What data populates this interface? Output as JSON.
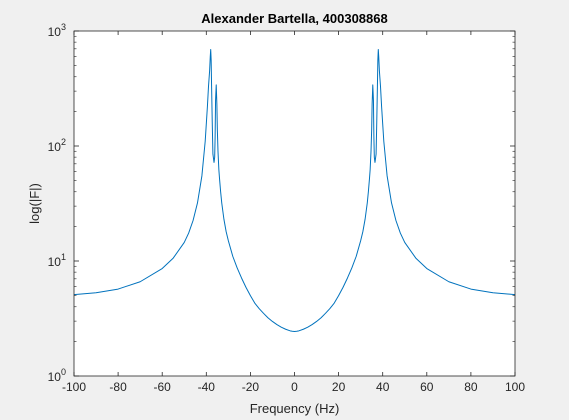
{
  "chart_data": {
    "type": "line",
    "title": "Alexander Bartella, 400308868",
    "xlabel": "Frequency (Hz)",
    "ylabel": "log(|F|)",
    "xlim": [
      -100,
      100
    ],
    "ylim": [
      1,
      1000
    ],
    "yscale": "log",
    "grid": false,
    "x_ticks": [
      -100,
      -80,
      -60,
      -40,
      -20,
      0,
      20,
      40,
      60,
      80,
      100
    ],
    "y_ticks": [
      {
        "value": 1,
        "base": "10",
        "exp": "0"
      },
      {
        "value": 10,
        "base": "10",
        "exp": "1"
      },
      {
        "value": 100,
        "base": "10",
        "exp": "2"
      },
      {
        "value": 1000,
        "base": "10",
        "exp": "3"
      }
    ],
    "line_color": "#0072bd",
    "series": [
      {
        "x": [
          -100,
          -90,
          -80,
          -70,
          -60,
          -55,
          -50,
          -48,
          -46,
          -44,
          -42,
          -40.5,
          -39.5,
          -39,
          -38.5,
          -38.2,
          -38,
          -37.8,
          -37.6,
          -37.3,
          -37,
          -36.5,
          -36.2,
          -36,
          -35.8,
          -35.5,
          -35.2,
          -35,
          -34.7,
          -34.3,
          -34,
          -33.5,
          -33,
          -32,
          -31,
          -30,
          -28,
          -26,
          -24,
          -22,
          -20,
          -18,
          -16,
          -14,
          -12,
          -10,
          -8,
          -6,
          -4,
          -2,
          -1,
          0,
          1,
          2,
          4,
          6,
          8,
          10,
          12,
          14,
          16,
          18,
          20,
          22,
          24,
          26,
          28,
          30,
          31,
          32,
          33,
          33.5,
          34,
          34.3,
          34.7,
          35,
          35.2,
          35.5,
          35.8,
          36,
          36.2,
          36.5,
          37,
          37.3,
          37.6,
          37.8,
          38,
          38.2,
          38.5,
          39,
          39.5,
          40.5,
          42,
          44,
          46,
          48,
          50,
          55,
          60,
          70,
          80,
          90,
          100
        ],
        "y": [
          5.1,
          5.3,
          5.7,
          6.6,
          8.6,
          10.6,
          14.5,
          17.5,
          22.5,
          32,
          55,
          110,
          220,
          330,
          450,
          600,
          690,
          560,
          330,
          160,
          85,
          72,
          80,
          120,
          250,
          340,
          230,
          140,
          90,
          62,
          52,
          40,
          32,
          23,
          18,
          15,
          11,
          8.7,
          7.1,
          5.9,
          5.0,
          4.3,
          3.85,
          3.5,
          3.2,
          2.98,
          2.8,
          2.66,
          2.55,
          2.47,
          2.45,
          2.44,
          2.45,
          2.47,
          2.55,
          2.66,
          2.8,
          2.98,
          3.2,
          3.5,
          3.85,
          4.3,
          5.0,
          5.9,
          7.1,
          8.7,
          11,
          15,
          18,
          23,
          32,
          40,
          52,
          62,
          90,
          140,
          230,
          340,
          250,
          120,
          80,
          72,
          85,
          160,
          330,
          560,
          690,
          600,
          450,
          330,
          220,
          110,
          55,
          32,
          22.5,
          17.5,
          14.5,
          10.6,
          8.6,
          6.6,
          5.7,
          5.3,
          5.1
        ]
      }
    ]
  }
}
